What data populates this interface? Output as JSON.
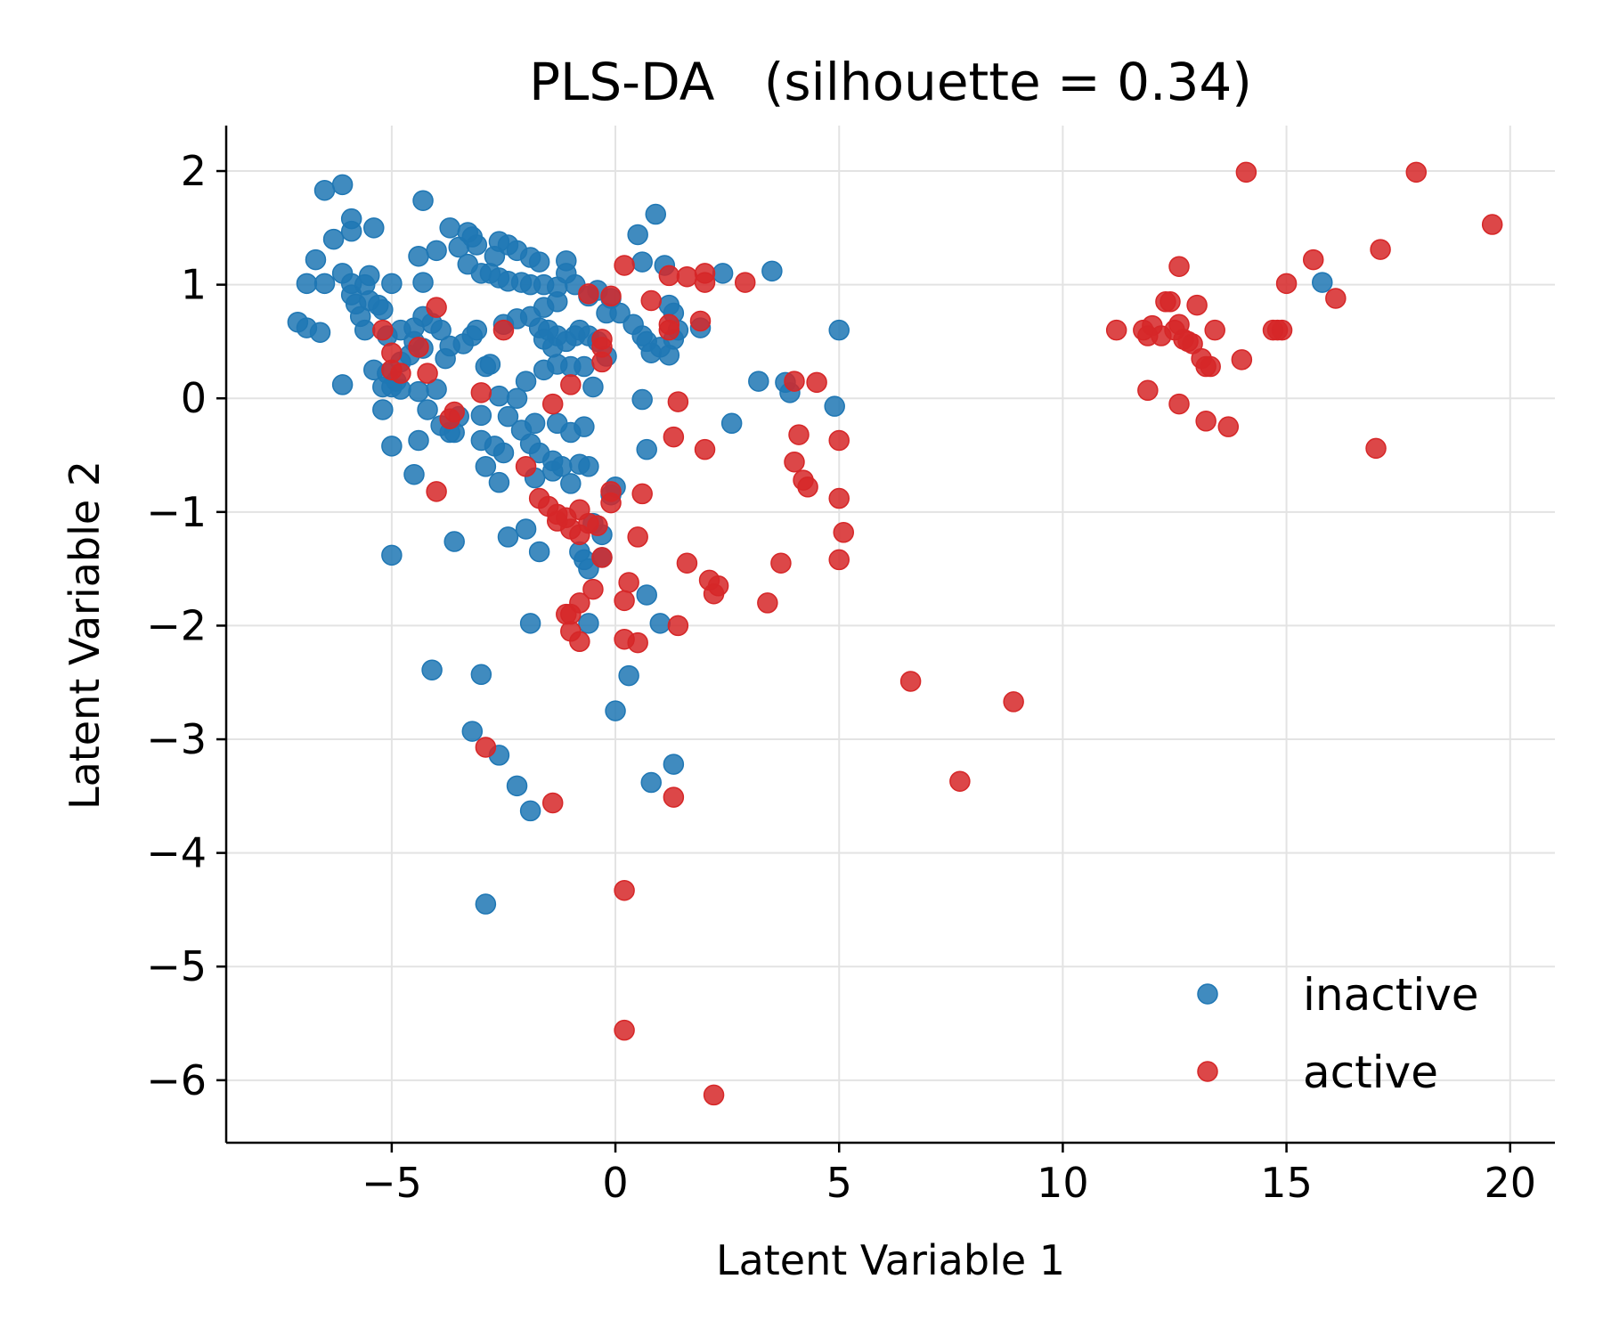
{
  "chart_data": {
    "type": "scatter",
    "title": "PLS-DA   (silhouette = 0.34)",
    "xlabel": "Latent Variable 1",
    "ylabel": "Latent Variable 2",
    "xlim": [
      -8.7,
      21
    ],
    "ylim": [
      -6.55,
      2.4
    ],
    "xticks": [
      -5,
      0,
      5,
      10,
      15,
      20
    ],
    "yticks": [
      2,
      1,
      0,
      -1,
      -2,
      -3,
      -4,
      -5,
      -6
    ],
    "xtick_labels": [
      "−5",
      "0",
      "5",
      "10",
      "15",
      "20"
    ],
    "ytick_labels": [
      "2",
      "1",
      "0",
      "−1",
      "−2",
      "−3",
      "−4",
      "−5",
      "−6"
    ],
    "grid": true,
    "legend_position": "lower-right",
    "series": [
      {
        "name": "inactive",
        "color": "#1f77b4",
        "points": [
          [
            -6.5,
            1.83
          ],
          [
            -6.1,
            1.88
          ],
          [
            -5.9,
            1.58
          ],
          [
            -5.9,
            1.47
          ],
          [
            -6.3,
            1.4
          ],
          [
            -6.7,
            1.22
          ],
          [
            -5.4,
            1.5
          ],
          [
            -4.3,
            1.74
          ],
          [
            -6.9,
            1.01
          ],
          [
            -6.5,
            1.01
          ],
          [
            -6.1,
            1.1
          ],
          [
            -5.9,
            1.01
          ],
          [
            -5.6,
            1.0
          ],
          [
            -5.5,
            1.08
          ],
          [
            -5.0,
            1.01
          ],
          [
            -5.9,
            0.91
          ],
          [
            -5.8,
            0.83
          ],
          [
            -5.5,
            0.86
          ],
          [
            -5.3,
            0.82
          ],
          [
            -5.2,
            0.78
          ],
          [
            -5.7,
            0.72
          ],
          [
            -7.1,
            0.67
          ],
          [
            -6.9,
            0.62
          ],
          [
            -6.6,
            0.58
          ],
          [
            -5.6,
            0.6
          ],
          [
            -5.1,
            0.55
          ],
          [
            -4.8,
            0.6
          ],
          [
            -4.5,
            0.62
          ],
          [
            -4.3,
            0.72
          ],
          [
            -4.1,
            0.66
          ],
          [
            -3.9,
            0.6
          ],
          [
            -3.7,
            0.46
          ],
          [
            -4.5,
            0.5
          ],
          [
            -4.3,
            0.44
          ],
          [
            -4.6,
            0.38
          ],
          [
            -4.8,
            0.32
          ],
          [
            -5.4,
            0.25
          ],
          [
            -5.1,
            0.22
          ],
          [
            -4.9,
            0.15
          ],
          [
            -5.0,
            0.1
          ],
          [
            -5.2,
            0.1
          ],
          [
            -4.8,
            0.08
          ],
          [
            -4.4,
            0.06
          ],
          [
            -4.0,
            0.08
          ],
          [
            -3.2,
            0.55
          ],
          [
            -3.1,
            0.6
          ],
          [
            -3.4,
            0.48
          ],
          [
            -3.8,
            0.35
          ],
          [
            -6.1,
            0.12
          ],
          [
            -5.2,
            -0.1
          ],
          [
            -4.2,
            -0.1
          ],
          [
            -3.9,
            -0.24
          ],
          [
            -3.6,
            -0.3
          ],
          [
            -3.5,
            -0.16
          ],
          [
            -4.4,
            -0.37
          ],
          [
            -5.0,
            -0.42
          ],
          [
            -4.5,
            -0.67
          ],
          [
            -3.7,
            -0.3
          ],
          [
            -3.3,
            1.46
          ],
          [
            -3.2,
            1.42
          ],
          [
            -3.5,
            1.33
          ],
          [
            -3.1,
            1.35
          ],
          [
            -2.6,
            1.38
          ],
          [
            -2.4,
            1.35
          ],
          [
            -2.7,
            1.25
          ],
          [
            -2.2,
            1.3
          ],
          [
            -1.9,
            1.24
          ],
          [
            -1.7,
            1.2
          ],
          [
            -1.1,
            1.21
          ],
          [
            -3.7,
            1.5
          ],
          [
            -4.0,
            1.3
          ],
          [
            -4.4,
            1.25
          ],
          [
            -4.3,
            1.02
          ],
          [
            -3.3,
            1.18
          ],
          [
            -3.0,
            1.1
          ],
          [
            -2.8,
            1.1
          ],
          [
            -2.6,
            1.06
          ],
          [
            -2.4,
            1.03
          ],
          [
            -2.1,
            1.02
          ],
          [
            -1.9,
            1.0
          ],
          [
            -1.6,
            1.0
          ],
          [
            -1.3,
            0.98
          ],
          [
            -1.1,
            1.1
          ],
          [
            -0.9,
            1.0
          ],
          [
            -0.6,
            0.9
          ],
          [
            -0.4,
            0.95
          ],
          [
            -1.3,
            0.85
          ],
          [
            -1.6,
            0.8
          ],
          [
            -1.9,
            0.72
          ],
          [
            -2.2,
            0.7
          ],
          [
            -2.5,
            0.65
          ],
          [
            -1.7,
            0.62
          ],
          [
            -1.5,
            0.6
          ],
          [
            -1.3,
            0.55
          ],
          [
            -1.1,
            0.5
          ],
          [
            -1.4,
            0.45
          ],
          [
            -1.6,
            0.52
          ],
          [
            -0.9,
            0.55
          ],
          [
            -0.8,
            0.6
          ],
          [
            -0.6,
            0.55
          ],
          [
            -0.4,
            0.5
          ],
          [
            -0.2,
            0.75
          ],
          [
            -0.1,
            0.88
          ],
          [
            0.1,
            0.75
          ],
          [
            0.4,
            0.65
          ],
          [
            0.6,
            0.55
          ],
          [
            0.7,
            0.5
          ],
          [
            0.8,
            0.4
          ],
          [
            0.6,
            1.2
          ],
          [
            0.5,
            1.44
          ],
          [
            0.9,
            1.62
          ],
          [
            1.1,
            1.17
          ],
          [
            1.2,
            0.82
          ],
          [
            1.3,
            0.75
          ],
          [
            1.4,
            0.6
          ],
          [
            1.3,
            0.52
          ],
          [
            1.0,
            0.45
          ],
          [
            1.2,
            0.38
          ],
          [
            1.9,
            0.62
          ],
          [
            2.4,
            1.1
          ],
          [
            3.5,
            1.12
          ],
          [
            5.0,
            0.6
          ],
          [
            3.2,
            0.15
          ],
          [
            3.8,
            0.14
          ],
          [
            3.9,
            0.05
          ],
          [
            4.9,
            -0.07
          ],
          [
            2.6,
            -0.22
          ],
          [
            0.6,
            -0.01
          ],
          [
            0.7,
            -0.45
          ],
          [
            -0.2,
            0.37
          ],
          [
            -0.5,
            0.1
          ],
          [
            -0.7,
            0.28
          ],
          [
            -1.0,
            0.28
          ],
          [
            -1.3,
            0.3
          ],
          [
            -1.6,
            0.25
          ],
          [
            -2.0,
            0.15
          ],
          [
            -2.2,
            0.0
          ],
          [
            -2.6,
            0.02
          ],
          [
            -2.9,
            0.28
          ],
          [
            -2.8,
            0.3
          ],
          [
            -3.0,
            -0.15
          ],
          [
            -3.0,
            -0.37
          ],
          [
            -2.7,
            -0.42
          ],
          [
            -2.5,
            -0.48
          ],
          [
            -2.4,
            -0.16
          ],
          [
            -2.1,
            -0.28
          ],
          [
            -1.8,
            -0.22
          ],
          [
            -1.9,
            -0.4
          ],
          [
            -1.7,
            -0.48
          ],
          [
            -1.4,
            -0.55
          ],
          [
            -1.2,
            -0.6
          ],
          [
            -1.3,
            -0.22
          ],
          [
            -0.7,
            -0.25
          ],
          [
            -1.0,
            -0.3
          ],
          [
            -0.8,
            -0.58
          ],
          [
            -2.9,
            -0.6
          ],
          [
            -2.6,
            -0.74
          ],
          [
            -1.8,
            -0.7
          ],
          [
            -1.4,
            -0.64
          ],
          [
            -1.0,
            -0.75
          ],
          [
            -0.6,
            -0.6
          ],
          [
            0.0,
            -0.78
          ],
          [
            -0.1,
            -0.85
          ],
          [
            -2.4,
            -1.22
          ],
          [
            -2.0,
            -1.15
          ],
          [
            -1.7,
            -1.35
          ],
          [
            -3.6,
            -1.26
          ],
          [
            -5.0,
            -1.38
          ],
          [
            -0.5,
            -1.1
          ],
          [
            -0.8,
            -1.35
          ],
          [
            -0.6,
            -1.5
          ],
          [
            -0.3,
            -1.4
          ],
          [
            -0.7,
            -1.42
          ],
          [
            -0.3,
            -1.2
          ],
          [
            0.7,
            -1.73
          ],
          [
            1.0,
            -1.98
          ],
          [
            -1.9,
            -1.98
          ],
          [
            -0.6,
            -1.98
          ],
          [
            0.3,
            -2.44
          ],
          [
            0.0,
            -2.75
          ],
          [
            -4.1,
            -2.39
          ],
          [
            -3.0,
            -2.43
          ],
          [
            -3.2,
            -2.93
          ],
          [
            -2.6,
            -3.14
          ],
          [
            -2.2,
            -3.41
          ],
          [
            -1.9,
            -3.63
          ],
          [
            1.3,
            -3.22
          ],
          [
            0.8,
            -3.38
          ],
          [
            -2.9,
            -4.45
          ],
          [
            15.8,
            1.02
          ]
        ]
      },
      {
        "name": "active",
        "color": "#d62728",
        "points": [
          [
            0.2,
            1.17
          ],
          [
            -0.1,
            0.9
          ],
          [
            -0.6,
            0.92
          ],
          [
            0.8,
            0.86
          ],
          [
            1.2,
            1.08
          ],
          [
            1.6,
            1.07
          ],
          [
            2.0,
            1.1
          ],
          [
            2.0,
            1.02
          ],
          [
            2.9,
            1.02
          ],
          [
            1.9,
            0.68
          ],
          [
            1.2,
            0.65
          ],
          [
            1.2,
            0.6
          ],
          [
            -0.3,
            0.52
          ],
          [
            -0.3,
            0.45
          ],
          [
            -0.3,
            0.32
          ],
          [
            -1.0,
            0.12
          ],
          [
            -1.4,
            -0.05
          ],
          [
            -4.0,
            0.8
          ],
          [
            -5.2,
            0.6
          ],
          [
            -5.0,
            0.4
          ],
          [
            -5.0,
            0.25
          ],
          [
            -4.8,
            0.22
          ],
          [
            -4.4,
            0.45
          ],
          [
            -4.2,
            0.22
          ],
          [
            -3.6,
            -0.12
          ],
          [
            -3.7,
            -0.18
          ],
          [
            -3.0,
            0.05
          ],
          [
            -2.5,
            0.6
          ],
          [
            -2.0,
            -0.6
          ],
          [
            -1.7,
            -0.88
          ],
          [
            -1.5,
            -0.95
          ],
          [
            -1.3,
            -1.02
          ],
          [
            -1.1,
            -1.05
          ],
          [
            -0.8,
            -0.98
          ],
          [
            -0.6,
            -1.1
          ],
          [
            -0.4,
            -1.12
          ],
          [
            -1.0,
            -1.15
          ],
          [
            -0.8,
            -1.2
          ],
          [
            -1.3,
            -1.08
          ],
          [
            -0.1,
            -0.82
          ],
          [
            -0.1,
            -0.92
          ],
          [
            0.6,
            -0.84
          ],
          [
            -0.3,
            -1.4
          ],
          [
            -0.5,
            -1.68
          ],
          [
            0.5,
            -1.22
          ],
          [
            -0.8,
            -1.8
          ],
          [
            -1.0,
            -1.9
          ],
          [
            -1.0,
            -2.05
          ],
          [
            -0.8,
            -2.14
          ],
          [
            -1.1,
            -1.9
          ],
          [
            0.2,
            -1.78
          ],
          [
            0.3,
            -1.62
          ],
          [
            0.2,
            -2.12
          ],
          [
            0.5,
            -2.15
          ],
          [
            1.4,
            -2.0
          ],
          [
            1.6,
            -1.45
          ],
          [
            2.1,
            -1.6
          ],
          [
            2.3,
            -1.65
          ],
          [
            2.2,
            -1.72
          ],
          [
            3.4,
            -1.8
          ],
          [
            3.7,
            -1.45
          ],
          [
            1.3,
            -0.34
          ],
          [
            1.4,
            -0.03
          ],
          [
            2.0,
            -0.45
          ],
          [
            4.0,
            0.15
          ],
          [
            4.5,
            0.14
          ],
          [
            4.1,
            -0.32
          ],
          [
            4.0,
            -0.56
          ],
          [
            4.2,
            -0.72
          ],
          [
            4.3,
            -0.78
          ],
          [
            5.0,
            -0.37
          ],
          [
            5.0,
            -0.88
          ],
          [
            5.1,
            -1.18
          ],
          [
            5.0,
            -1.42
          ],
          [
            -4.0,
            -0.82
          ],
          [
            -2.9,
            -3.07
          ],
          [
            -1.4,
            -3.56
          ],
          [
            1.3,
            -3.51
          ],
          [
            0.2,
            -4.33
          ],
          [
            0.2,
            -5.56
          ],
          [
            2.2,
            -6.13
          ],
          [
            6.6,
            -2.49
          ],
          [
            7.7,
            -3.37
          ],
          [
            8.9,
            -2.67
          ],
          [
            11.2,
            0.6
          ],
          [
            11.8,
            0.6
          ],
          [
            11.9,
            0.55
          ],
          [
            12.0,
            0.64
          ],
          [
            12.2,
            0.55
          ],
          [
            12.3,
            0.85
          ],
          [
            12.4,
            0.85
          ],
          [
            12.5,
            0.6
          ],
          [
            12.6,
            0.65
          ],
          [
            12.7,
            0.52
          ],
          [
            12.8,
            0.5
          ],
          [
            12.9,
            0.48
          ],
          [
            13.0,
            0.82
          ],
          [
            13.1,
            0.35
          ],
          [
            13.2,
            0.28
          ],
          [
            13.3,
            0.28
          ],
          [
            13.4,
            0.6
          ],
          [
            12.6,
            1.16
          ],
          [
            11.9,
            0.07
          ],
          [
            12.6,
            -0.05
          ],
          [
            13.2,
            -0.2
          ],
          [
            13.7,
            -0.25
          ],
          [
            14.0,
            0.34
          ],
          [
            14.7,
            0.6
          ],
          [
            14.8,
            0.6
          ],
          [
            14.9,
            0.6
          ],
          [
            15.0,
            1.01
          ],
          [
            15.6,
            1.22
          ],
          [
            16.1,
            0.88
          ],
          [
            17.1,
            1.31
          ],
          [
            14.1,
            1.99
          ],
          [
            17.9,
            1.99
          ],
          [
            19.6,
            1.53
          ],
          [
            17.0,
            -0.44
          ]
        ]
      }
    ]
  }
}
